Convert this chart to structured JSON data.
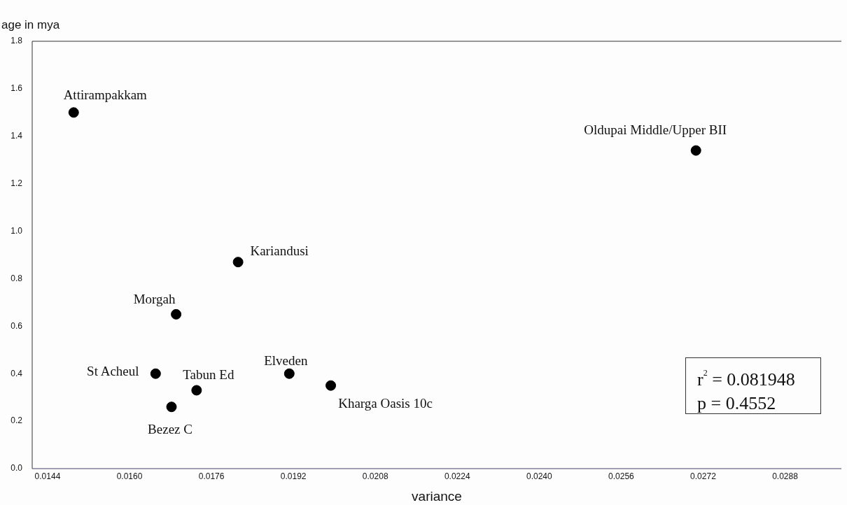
{
  "chart_data": {
    "type": "scatter",
    "xlabel": "variance",
    "ylabel": "age in mya",
    "xlim": [
      0.0141,
      0.0299
    ],
    "xticks": [
      0.0144,
      {
        "value": 0.016,
        "label": "0.0160"
      },
      0.0176,
      0.0192,
      0.0208,
      0.0224,
      {
        "value": 0.024,
        "label": "0.0240"
      },
      0.0256,
      0.0272,
      0.0288
    ],
    "ylim": [
      0,
      1.8
    ],
    "yticks": [
      {
        "value": 0,
        "label": "0.0"
      },
      0.2,
      0.4,
      0.6,
      0.8,
      {
        "value": 1,
        "label": "1.0"
      },
      1.2,
      1.4,
      1.6,
      1.8
    ],
    "grid": false,
    "legend": false,
    "marker": "circle",
    "series": [
      {
        "color": "#000000",
        "x": [
          0.01491,
          0.02706,
          0.01812,
          0.01691,
          0.01651,
          0.01731,
          0.01682,
          0.01912,
          0.01993
        ],
        "values": [
          1.5,
          1.34,
          0.87,
          0.65,
          0.4,
          0.33,
          0.26,
          0.4,
          0.35
        ]
      }
    ],
    "annotations": [
      {
        "text": "Attirampakkam",
        "x": 0.01491,
        "y": 1.5
      },
      {
        "text": "Oldupai Middle/Upper BII",
        "x": 0.02706,
        "y": 1.34
      },
      {
        "text": "Kariandusi",
        "x": 0.01812,
        "y": 0.87
      },
      {
        "text": "Morgah",
        "x": 0.01691,
        "y": 0.65
      },
      {
        "text": "St Acheul",
        "x": 0.01651,
        "y": 0.4
      },
      {
        "text": "Tabun Ed",
        "x": 0.01731,
        "y": 0.33
      },
      {
        "text": "Bezez C",
        "x": 0.01682,
        "y": 0.26
      },
      {
        "text": "Elveden",
        "x": 0.01912,
        "y": 0.4
      },
      {
        "text": "Kharga Oasis 10c",
        "x": 0.01993,
        "y": 0.35
      },
      "r$^{2}$ = 0.081948",
      "p = 0.4552"
    ]
  }
}
